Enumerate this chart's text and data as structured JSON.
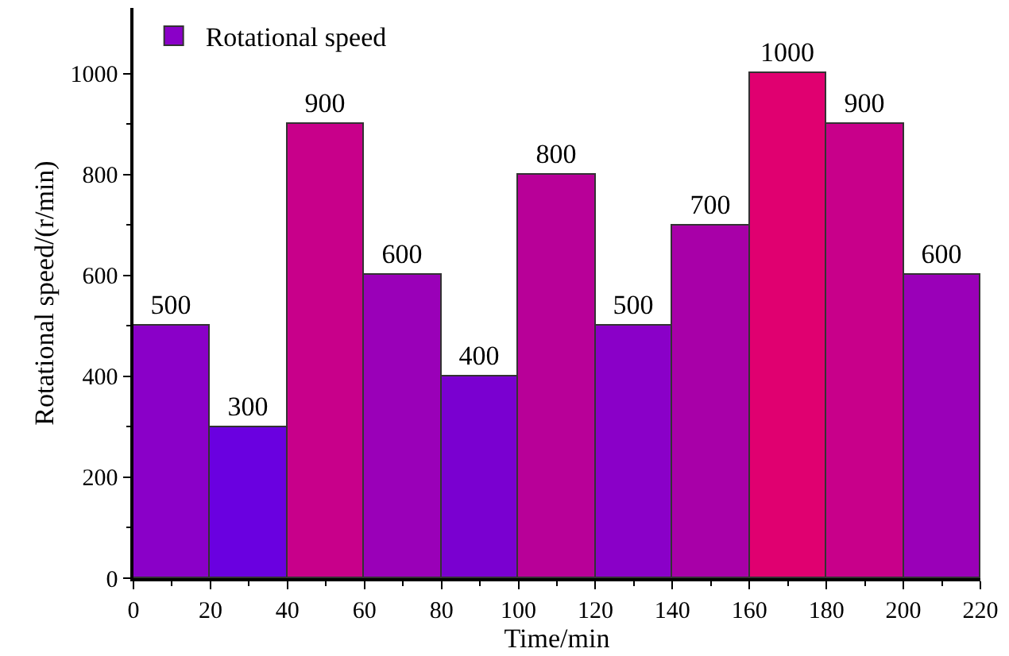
{
  "chart_data": {
    "type": "histogram",
    "xlabel": "Time/min",
    "ylabel": "Rotational speed/(r/min)",
    "bins": [
      0,
      20,
      40,
      60,
      80,
      100,
      120,
      140,
      160,
      180,
      200,
      220
    ],
    "series": [
      {
        "name": "Rotational speed",
        "values": [
          500,
          300,
          900,
          600,
          400,
          800,
          500,
          700,
          1000,
          900,
          600
        ],
        "colors": [
          "#8a00c8",
          "#6a00e0",
          "#c8008a",
          "#9a00b8",
          "#7a00d0",
          "#b80098",
          "#8a00c8",
          "#a800a8",
          "#e00070",
          "#c8008a",
          "#9a00b8"
        ]
      }
    ],
    "xlim": [
      0,
      220
    ],
    "xticks": [
      0,
      20,
      40,
      60,
      80,
      100,
      120,
      140,
      160,
      180,
      200,
      220
    ],
    "ylim": [
      0,
      1130
    ],
    "yticks": [
      0,
      200,
      400,
      600,
      800,
      1000
    ],
    "data_labels": true,
    "legend": "top left"
  }
}
